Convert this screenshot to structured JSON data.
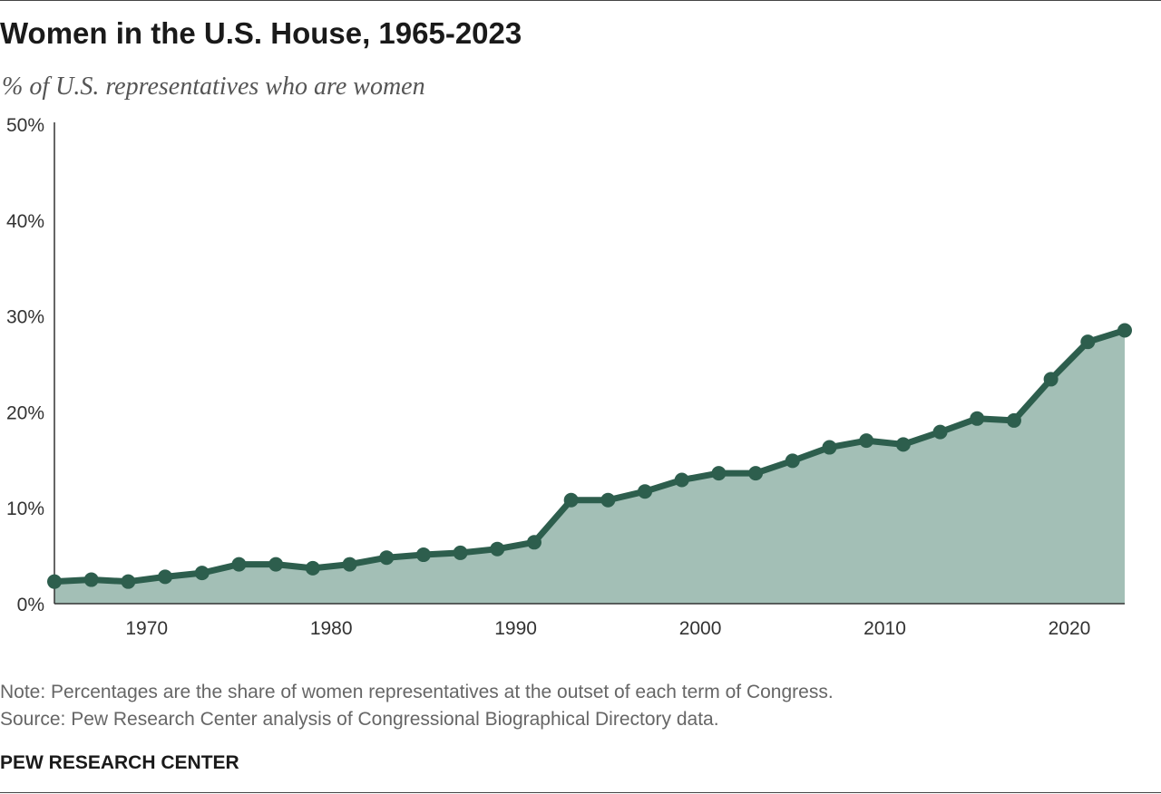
{
  "header": {
    "title": "Women in the U.S. House, 1965-2023",
    "subtitle": "% of U.S. representatives who are women"
  },
  "footer": {
    "note": "Note: Percentages are the share of women representatives at the outset of each term of Congress.",
    "source": "Source: Pew Research Center analysis of Congressional Biographical Directory data.",
    "brand": "PEW RESEARCH CENTER"
  },
  "colors": {
    "line": "#2d5e4d",
    "area": "#a3bfb6",
    "axis": "#333333",
    "text": "#333333"
  },
  "chart_data": {
    "type": "area",
    "title": "Women in the U.S. House, 1965-2023",
    "subtitle": "% of U.S. representatives who are women",
    "xlabel": "",
    "ylabel": "",
    "xlim": [
      1965,
      2023
    ],
    "ylim": [
      0,
      50
    ],
    "grid": false,
    "legend": "none",
    "y_ticks": [
      0,
      10,
      20,
      30,
      40,
      50
    ],
    "y_tick_labels": [
      "0%",
      "10%",
      "20%",
      "30%",
      "40%",
      "50%"
    ],
    "x_ticks": [
      1970,
      1980,
      1990,
      2000,
      2010,
      2020
    ],
    "x_tick_labels": [
      "1970",
      "1980",
      "1990",
      "2000",
      "2010",
      "2020"
    ],
    "x": [
      1965,
      1967,
      1969,
      1971,
      1973,
      1975,
      1977,
      1979,
      1981,
      1983,
      1985,
      1987,
      1989,
      1991,
      1993,
      1995,
      1997,
      1999,
      2001,
      2003,
      2005,
      2007,
      2009,
      2011,
      2013,
      2015,
      2017,
      2019,
      2021,
      2023
    ],
    "series": [
      {
        "values": [
          2.3,
          2.5,
          2.3,
          2.8,
          3.2,
          4.1,
          4.1,
          3.7,
          4.1,
          4.8,
          5.1,
          5.3,
          5.7,
          6.4,
          10.8,
          10.8,
          11.7,
          12.9,
          13.6,
          13.6,
          14.9,
          16.3,
          17.0,
          16.6,
          17.9,
          19.3,
          19.1,
          23.4,
          27.3,
          28.5
        ]
      }
    ]
  }
}
